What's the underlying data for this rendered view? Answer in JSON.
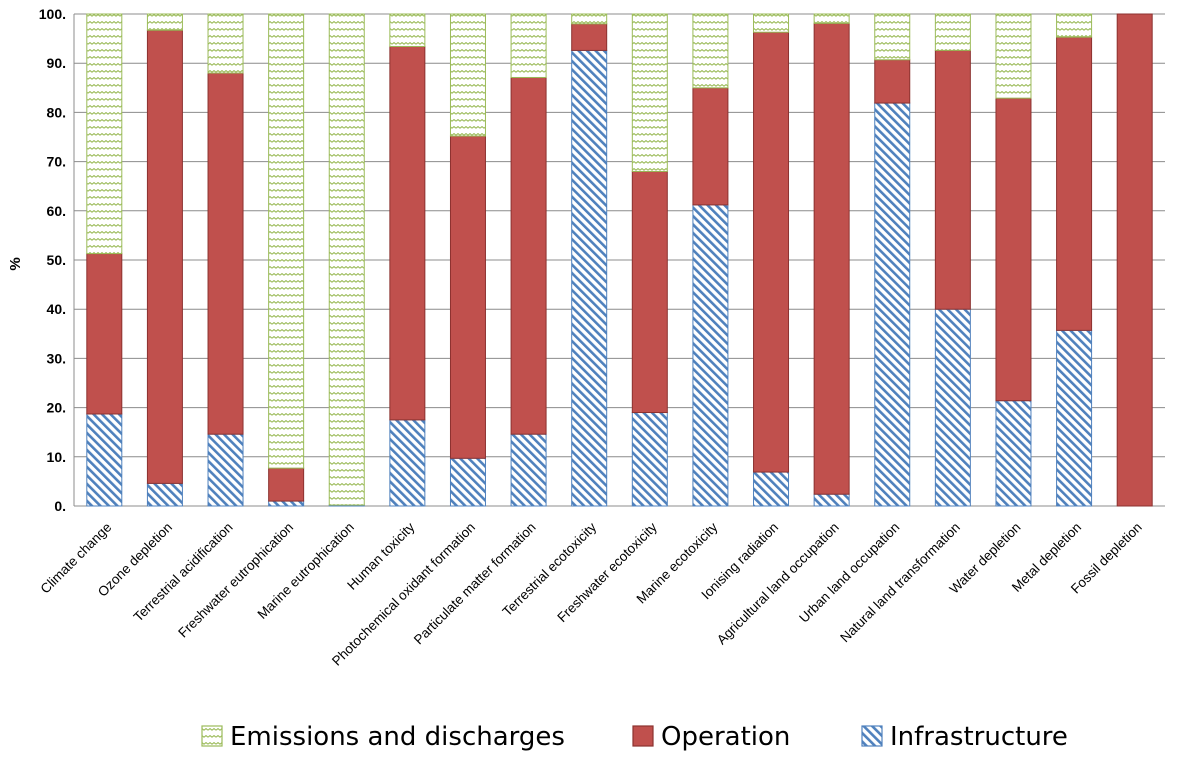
{
  "chart_data": {
    "type": "bar",
    "stacked": true,
    "title": "",
    "xlabel": "",
    "ylabel": "%",
    "ylim": [
      0,
      100
    ],
    "yticks": [
      "0.",
      "10.",
      "20.",
      "30.",
      "40.",
      "50.",
      "60.",
      "70.",
      "80.",
      "90.",
      "100."
    ],
    "grid": true,
    "legend_position": "bottom",
    "categories": [
      "Climate change",
      "Ozone depletion",
      "Terrestrial acidification",
      "Freshwater eutrophication",
      "Marine eutrophication",
      "Human toxicity",
      "Photochemical oxidant formation",
      "Particulate matter formation",
      "Terrestrial ecotoxicity",
      "Freshwater ecotoxicity",
      "Marine ecotoxicity",
      "Ionising radiation",
      "Agricultural land occupation",
      "Urban land occupation",
      "Natural land transformation",
      "Water depletion",
      "Metal depletion",
      "Fossil depletion"
    ],
    "series": [
      {
        "name": "Infrastructure",
        "color": "#4f81bd",
        "pattern": "diagonal-hatch",
        "values": [
          18.7,
          4.6,
          14.6,
          1.0,
          0.2,
          17.5,
          9.7,
          14.6,
          92.6,
          19.0,
          61.2,
          6.9,
          2.4,
          81.9,
          40.0,
          21.4,
          35.7,
          0.0
        ]
      },
      {
        "name": "Operation",
        "color": "#c0504d",
        "pattern": "solid",
        "values": [
          32.6,
          92.1,
          73.4,
          6.7,
          0.0,
          75.9,
          65.5,
          72.5,
          5.4,
          49.0,
          23.8,
          89.4,
          95.7,
          8.8,
          52.6,
          61.5,
          59.6,
          100.0
        ]
      },
      {
        "name": "Emissions and discharges",
        "color": "#9bbb59",
        "pattern": "zigzag",
        "values": [
          48.7,
          3.3,
          12.0,
          92.3,
          99.8,
          6.6,
          24.8,
          12.9,
          2.0,
          32.0,
          15.0,
          3.7,
          1.9,
          9.3,
          7.4,
          17.1,
          4.7,
          0.0
        ]
      }
    ],
    "legend": [
      "Emissions and discharges",
      "Operation",
      "Infrastructure"
    ]
  }
}
